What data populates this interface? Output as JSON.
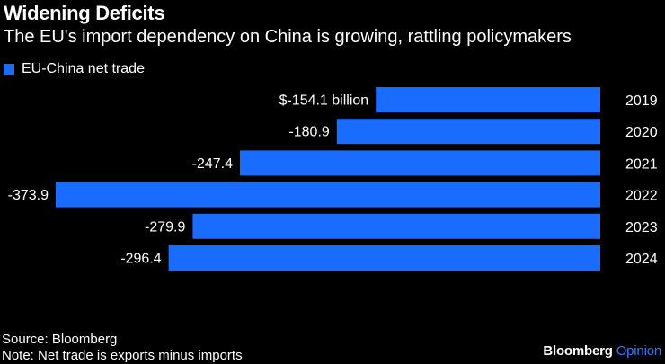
{
  "header": {
    "title": "Widening Deficits",
    "subtitle": "The EU's import dependency on China is growing, rattling policymakers"
  },
  "legend": {
    "label": "EU-China net trade"
  },
  "colors": {
    "bar": "#1a6cff",
    "background": "#000000",
    "text": "#ffffff",
    "brand_accent": "#2f7bff"
  },
  "chart_data": {
    "type": "bar",
    "orientation": "horizontal",
    "title": "Widening Deficits",
    "subtitle": "The EU's import dependency on China is growing, rattling policymakers",
    "series": [
      {
        "name": "EU-China net trade",
        "values": [
          -154.1,
          -180.9,
          -247.4,
          -373.9,
          -279.9,
          -296.4
        ]
      }
    ],
    "categories": [
      "2019",
      "2020",
      "2021",
      "2022",
      "2023",
      "2024"
    ],
    "value_labels": [
      "$-154.1 billion",
      "-180.9",
      "-247.4",
      "-373.9",
      "-279.9",
      "-296.4"
    ],
    "xlim": [
      -373.9,
      0
    ],
    "xlabel": "",
    "ylabel": "",
    "grid": false,
    "legend_position": "top-left"
  },
  "footer": {
    "source": "Source: Bloomberg",
    "note": "Note: Net trade is exports minus imports",
    "brand_primary": "Bloomberg",
    "brand_secondary": "Opinion"
  }
}
